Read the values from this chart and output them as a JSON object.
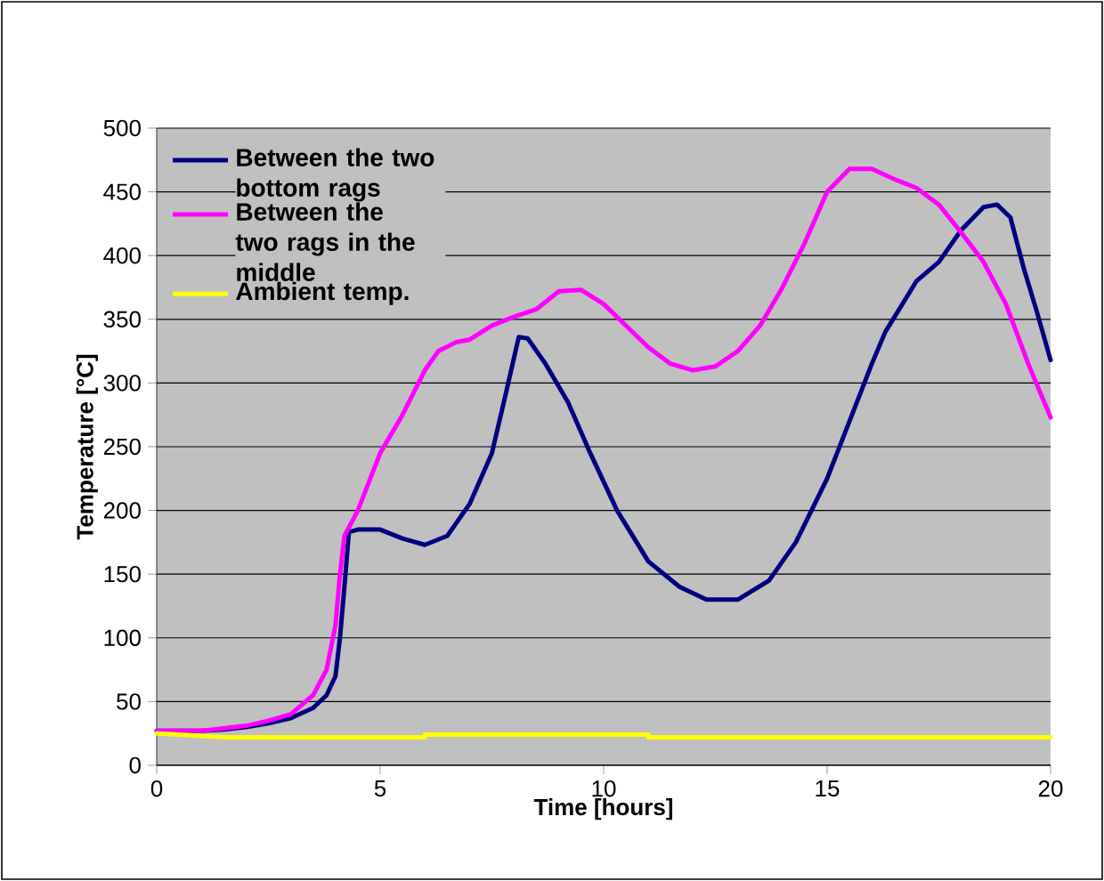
{
  "chart_data": {
    "type": "line",
    "xlabel": "Time [hours]",
    "ylabel": "Temperature [°C]",
    "xlim": [
      0,
      20
    ],
    "xticks": [
      0,
      5,
      10,
      15,
      20
    ],
    "ylim": [
      0,
      500
    ],
    "yticks": [
      0,
      50,
      100,
      150,
      200,
      250,
      300,
      350,
      400,
      450,
      500
    ],
    "grid": "y",
    "legend": "top left",
    "marker": "none",
    "line_style": "solid",
    "series": [
      {
        "name": "Between the two bottom rags",
        "color": "#000080",
        "x": [
          0,
          1,
          1.5,
          2,
          2.5,
          3,
          3.5,
          3.8,
          4,
          4.1,
          4.2,
          4.3,
          4.5,
          5,
          5.5,
          6,
          6.5,
          7,
          7.5,
          7.8,
          8.1,
          8.3,
          8.7,
          9.2,
          9.7,
          10.3,
          11,
          11.7,
          12.3,
          13,
          13.7,
          14.3,
          15,
          15.5,
          16,
          16.3,
          17,
          17.5,
          18,
          18.5,
          18.8,
          19.1,
          19.4,
          19.7,
          20
        ],
        "values": [
          27,
          27,
          28,
          30,
          33,
          37,
          45,
          55,
          70,
          100,
          140,
          183,
          185,
          185,
          178,
          173,
          180,
          205,
          245,
          290,
          336,
          335,
          315,
          285,
          245,
          200,
          160,
          140,
          130,
          130,
          145,
          175,
          225,
          270,
          315,
          340,
          380,
          395,
          420,
          438,
          440,
          430,
          390,
          355,
          318
        ]
      },
      {
        "name": "Between the two rags in the middle",
        "color": "#ff00ff",
        "x": [
          0,
          1,
          2,
          2.5,
          3,
          3.5,
          3.8,
          4,
          4.1,
          4.2,
          4.5,
          5,
          5.5,
          6,
          6.3,
          6.7,
          7,
          7.5,
          8,
          8.5,
          9,
          9.5,
          10,
          10.5,
          11,
          11.5,
          12,
          12.5,
          13,
          13.5,
          14,
          14.5,
          15,
          15.5,
          16,
          16.5,
          17,
          17.5,
          18,
          18.5,
          19,
          19.5,
          20
        ],
        "values": [
          27,
          27,
          31,
          35,
          40,
          55,
          75,
          110,
          150,
          180,
          200,
          245,
          275,
          310,
          325,
          332,
          334,
          345,
          352,
          358,
          372,
          373,
          362,
          345,
          328,
          315,
          310,
          313,
          325,
          345,
          375,
          410,
          450,
          468,
          468,
          460,
          453,
          440,
          418,
          395,
          362,
          315,
          273
        ]
      },
      {
        "name": "Ambient temp.",
        "color": "#ffff00",
        "x": [
          0,
          0.5,
          1.5,
          6,
          6,
          11,
          11,
          20
        ],
        "values": [
          25,
          24,
          22,
          22,
          24,
          24,
          22,
          22
        ]
      }
    ]
  }
}
